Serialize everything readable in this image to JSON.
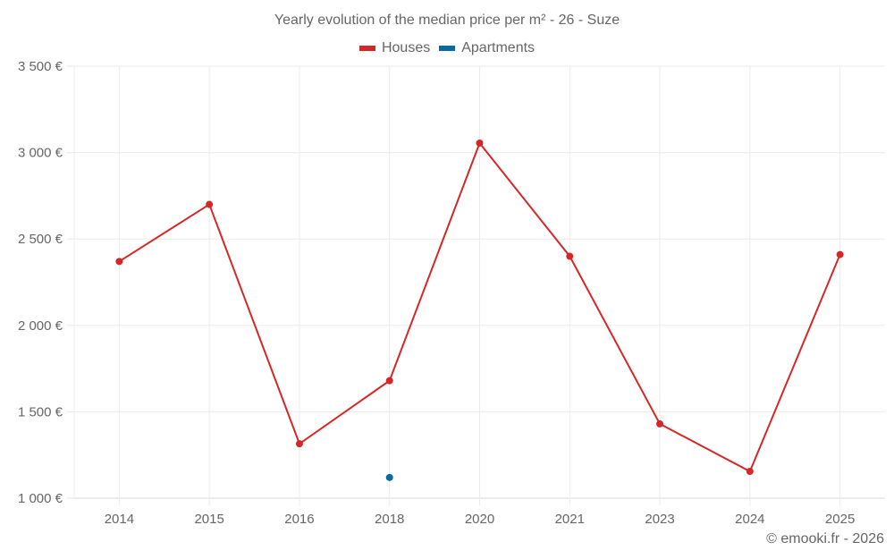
{
  "chart_data": {
    "type": "line",
    "title": "Yearly evolution of the median price per m² - 26 - Suze",
    "xlabel": "",
    "ylabel": "",
    "categories": [
      "2014",
      "2015",
      "2016",
      "2018",
      "2020",
      "2021",
      "2023",
      "2024",
      "2025"
    ],
    "series": [
      {
        "name": "Houses",
        "color": "#d62728",
        "values": [
          2370,
          2700,
          1315,
          1680,
          3055,
          2400,
          1430,
          1155,
          2410
        ]
      },
      {
        "name": "Apartments",
        "color": "#0b6aa2",
        "values": [
          null,
          null,
          null,
          1120,
          null,
          null,
          null,
          null,
          null
        ]
      }
    ],
    "ylim": [
      1000,
      3500
    ],
    "yticks": [
      1000,
      1500,
      2000,
      2500,
      3000,
      3500
    ],
    "ytick_labels": [
      "1 000 €",
      "1 500 €",
      "2 000 €",
      "2 500 €",
      "3 000 €",
      "3 500 €"
    ],
    "grid": true,
    "legend_position": "top"
  },
  "header": {
    "title": "Yearly evolution of the median price per m² - 26 - Suze"
  },
  "legend": {
    "items": [
      {
        "label": "Houses",
        "color": "#d62728"
      },
      {
        "label": "Apartments",
        "color": "#0b6aa2"
      }
    ]
  },
  "footer": {
    "credit": "© emooki.fr - 2026"
  }
}
